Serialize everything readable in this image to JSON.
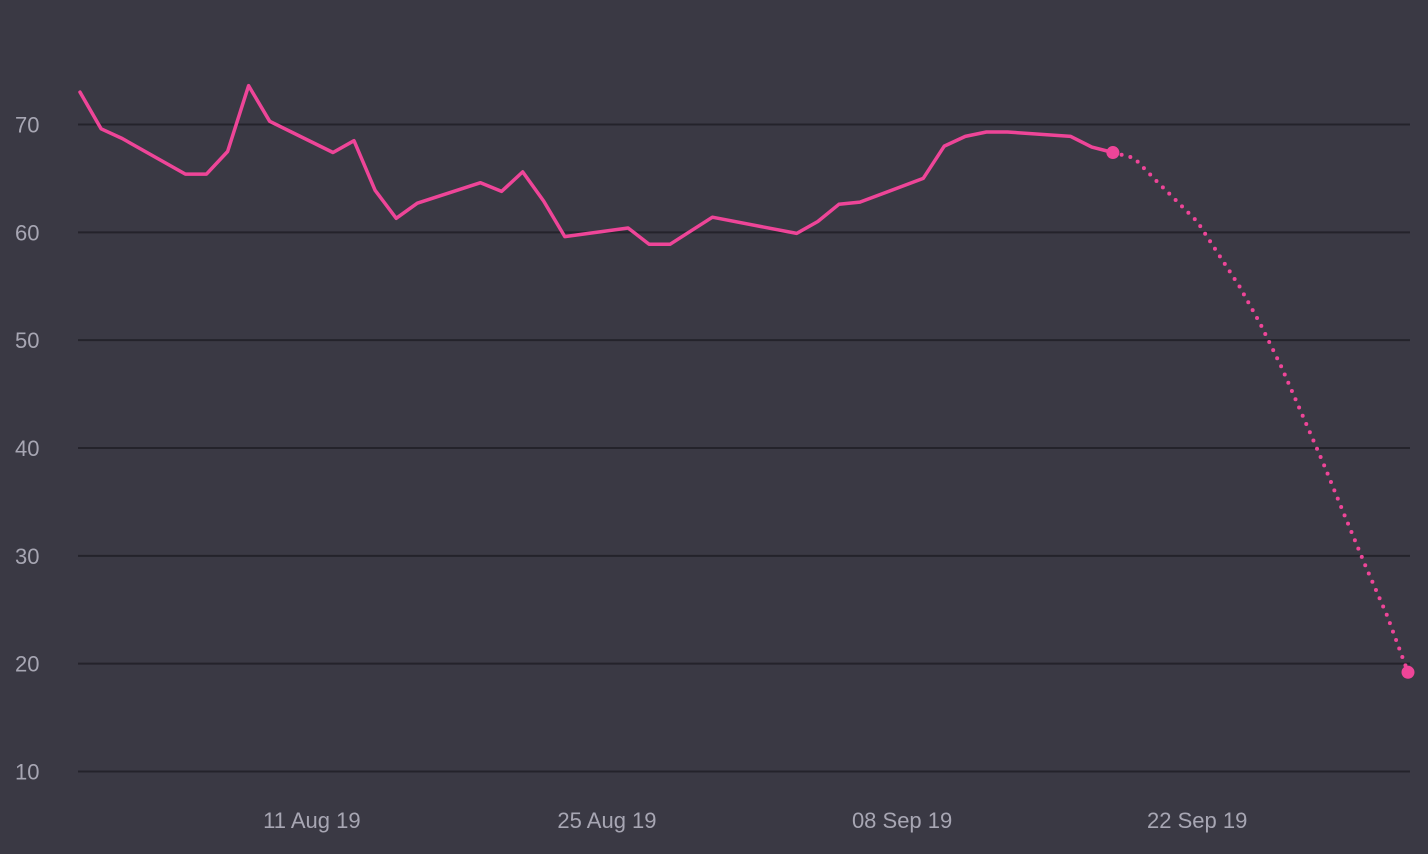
{
  "chart_data": {
    "type": "line",
    "title": "",
    "xlabel": "",
    "ylabel": "",
    "x_range": [
      "2019-07-31",
      "2019-10-03"
    ],
    "ylim": [
      10,
      76
    ],
    "y_ticks": [
      10,
      20,
      30,
      40,
      50,
      60,
      70
    ],
    "x_ticks": [
      {
        "date": "2019-08-11",
        "label": "11 Aug 19"
      },
      {
        "date": "2019-08-25",
        "label": "25 Aug 19"
      },
      {
        "date": "2019-09-08",
        "label": "08 Sep 19"
      },
      {
        "date": "2019-09-22",
        "label": "22 Sep 19"
      }
    ],
    "grid": true,
    "legend": "none",
    "series": [
      {
        "style": "solid",
        "color": "#ee4598",
        "points": [
          [
            "2019-07-31",
            73.0
          ],
          [
            "2019-08-01",
            69.6
          ],
          [
            "2019-08-02",
            68.7
          ],
          [
            "2019-08-05",
            65.4
          ],
          [
            "2019-08-06",
            65.4
          ],
          [
            "2019-08-07",
            67.5
          ],
          [
            "2019-08-08",
            73.6
          ],
          [
            "2019-08-09",
            70.3
          ],
          [
            "2019-08-12",
            67.4
          ],
          [
            "2019-08-13",
            68.5
          ],
          [
            "2019-08-14",
            63.9
          ],
          [
            "2019-08-15",
            61.3
          ],
          [
            "2019-08-16",
            62.7
          ],
          [
            "2019-08-19",
            64.6
          ],
          [
            "2019-08-20",
            63.8
          ],
          [
            "2019-08-21",
            65.6
          ],
          [
            "2019-08-22",
            62.9
          ],
          [
            "2019-08-23",
            59.6
          ],
          [
            "2019-08-26",
            60.4
          ],
          [
            "2019-08-27",
            58.9
          ],
          [
            "2019-08-28",
            58.9
          ],
          [
            "2019-08-30",
            61.4
          ],
          [
            "2019-09-03",
            59.9
          ],
          [
            "2019-09-04",
            61.0
          ],
          [
            "2019-09-05",
            62.6
          ],
          [
            "2019-09-06",
            62.8
          ],
          [
            "2019-09-09",
            65.0
          ],
          [
            "2019-09-10",
            68.0
          ],
          [
            "2019-09-11",
            68.9
          ],
          [
            "2019-09-12",
            69.3
          ],
          [
            "2019-09-13",
            69.3
          ],
          [
            "2019-09-16",
            68.9
          ],
          [
            "2019-09-17",
            67.9
          ],
          [
            "2019-09-18",
            67.4
          ]
        ]
      },
      {
        "style": "dotted",
        "color": "#ee4598",
        "points": [
          [
            "2019-09-18",
            67.4
          ],
          [
            "2019-09-19",
            66.9
          ],
          [
            "2019-09-20",
            64.9
          ],
          [
            "2019-09-22",
            61.0
          ],
          [
            "2019-09-23",
            58.0
          ],
          [
            "2019-09-24",
            55.0
          ],
          [
            "2019-09-25",
            51.5
          ],
          [
            "2019-09-26",
            47.5
          ],
          [
            "2019-09-27",
            43.0
          ],
          [
            "2019-09-28",
            38.5
          ],
          [
            "2019-09-29",
            33.7
          ],
          [
            "2019-09-30",
            29.0
          ],
          [
            "2019-10-01",
            24.5
          ],
          [
            "2019-10-02",
            19.2
          ]
        ],
        "endpoints": [
          [
            "2019-09-18",
            67.4
          ],
          [
            "2019-10-02",
            19.2
          ]
        ]
      }
    ]
  },
  "colors": {
    "background": "#3a3944",
    "grid": "#24232b",
    "tick_text": "#a7a6b3",
    "line": "#ee4598"
  }
}
